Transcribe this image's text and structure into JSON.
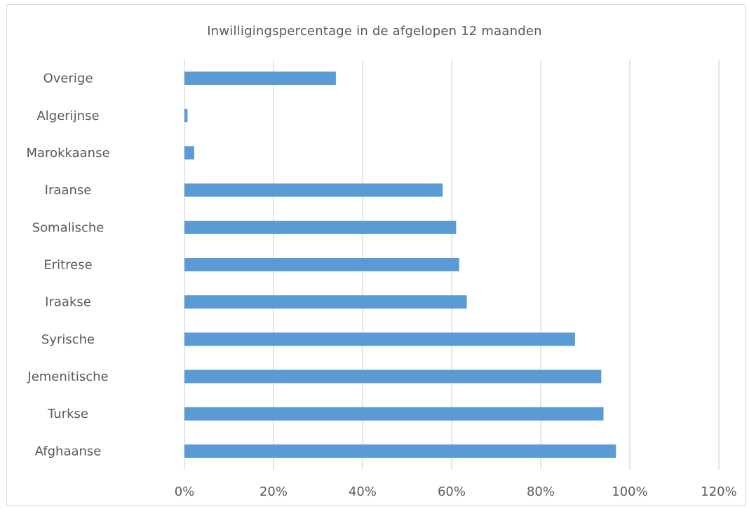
{
  "chart_data": {
    "type": "bar",
    "orientation": "horizontal",
    "title": "Inwilligingspercentage in de afgelopen 12 maanden",
    "xlabel": "",
    "ylabel": "",
    "categories": [
      "Overige",
      "Algerijnse",
      "Marokkaanse",
      "Iraanse",
      "Somalische",
      "Eritrese",
      "Iraakse",
      "Syrische",
      "Jemenitische",
      "Turkse",
      "Afghaanse"
    ],
    "values": [
      0.34,
      0.007,
      0.022,
      0.58,
      0.61,
      0.617,
      0.634,
      0.877,
      0.936,
      0.941,
      0.969
    ],
    "xlim": [
      0,
      1.2
    ],
    "ticks": [
      0,
      0.2,
      0.4,
      0.6,
      0.8,
      1.0,
      1.2
    ],
    "tick_labels": [
      "0%",
      "20%",
      "40%",
      "60%",
      "80%",
      "100%",
      "120%"
    ],
    "grid": true,
    "legend": "none",
    "colors": {
      "bar": "#5b9bd5",
      "grid": "#d9d9d9",
      "text": "#595959"
    }
  }
}
